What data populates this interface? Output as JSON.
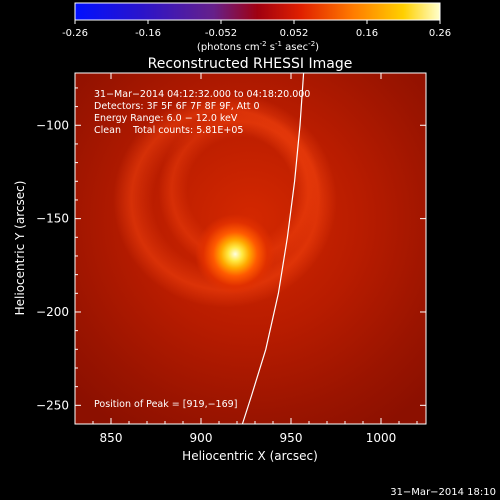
{
  "colorbar": {
    "ticks": [
      "-0.26",
      "-0.16",
      "-0.052",
      "0.052",
      "0.16",
      "0.26"
    ],
    "units_text": "(photons cm",
    "units_exp1": "-2",
    "units_mid": " s",
    "units_exp2": "-1",
    "units_tail": " asec",
    "units_exp3": "-2",
    "units_close": ")"
  },
  "chart_data": {
    "type": "heatmap",
    "title": "Reconstructed RHESSI Image",
    "xlabel": "Heliocentric X (arcsec)",
    "ylabel": "Heliocentric Y (arcsec)",
    "xlim": [
      830,
      1025
    ],
    "ylim": [
      -260,
      -72
    ],
    "x_ticks": [
      850,
      900,
      950,
      1000
    ],
    "y_ticks": [
      -250,
      -200,
      -150,
      -100
    ],
    "x_tick_labels": [
      "850",
      "900",
      "950",
      "1000"
    ],
    "y_tick_labels": [
      "−250",
      "−200",
      "−150",
      "−100"
    ],
    "color_range": [
      -0.26,
      0.26
    ],
    "colormap": "RHESSI blue-purple-red-yellow-white",
    "peak": {
      "x": 919,
      "y": -169
    },
    "annotations": {
      "time": "31−Mar−2014 04:12:32.000 to 04:18:20.000",
      "detectors": "Detectors: 3F 5F 6F 7F 8F 9F, Att 0",
      "energy": "Energy Range: 6.0 − 12.0 keV",
      "clean": "Clean    Total counts: 5.81E+05",
      "peak_text": "Position of Peak = [919,−169]"
    },
    "limb_curve": [
      [
        957,
        -72
      ],
      [
        955,
        -100
      ],
      [
        952,
        -130
      ],
      [
        948,
        -160
      ],
      [
        943,
        -190
      ],
      [
        936,
        -220
      ],
      [
        928,
        -245
      ],
      [
        923,
        -260
      ]
    ]
  },
  "footer": {
    "timestamp": "31−Mar−2014 18:10"
  }
}
